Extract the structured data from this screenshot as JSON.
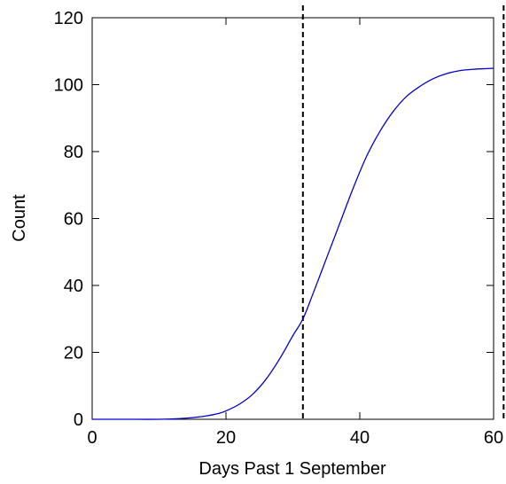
{
  "chart_data": {
    "type": "line",
    "title": "",
    "xlabel": "Days Past 1 September",
    "ylabel": "Count",
    "xlim": [
      0,
      60
    ],
    "ylim": [
      0,
      120
    ],
    "xticks": [
      0,
      20,
      40,
      60
    ],
    "yticks": [
      0,
      20,
      40,
      60,
      80,
      100,
      120
    ],
    "grid": false,
    "legend": "none",
    "series": [
      {
        "color": "#0000cc",
        "x": [
          0,
          5,
          10,
          13,
          15,
          17,
          19,
          20,
          22,
          24,
          26,
          28,
          30,
          31.5,
          33,
          35,
          37,
          39,
          41,
          43,
          45,
          47,
          49,
          51,
          53,
          55,
          57,
          59,
          60
        ],
        "y": [
          0,
          0,
          0,
          0.2,
          0.5,
          1.0,
          1.8,
          2.5,
          4.5,
          7.5,
          12,
          18,
          25,
          30,
          37.5,
          48,
          58.5,
          69,
          78.5,
          86,
          92,
          96.5,
          99.5,
          101.8,
          103.3,
          104.2,
          104.6,
          104.8,
          104.9
        ]
      }
    ],
    "vlines": [
      {
        "x": 31.5,
        "style": "dashed",
        "color": "#000000"
      },
      {
        "x": 61.5,
        "style": "dashed",
        "color": "#000000"
      }
    ]
  }
}
